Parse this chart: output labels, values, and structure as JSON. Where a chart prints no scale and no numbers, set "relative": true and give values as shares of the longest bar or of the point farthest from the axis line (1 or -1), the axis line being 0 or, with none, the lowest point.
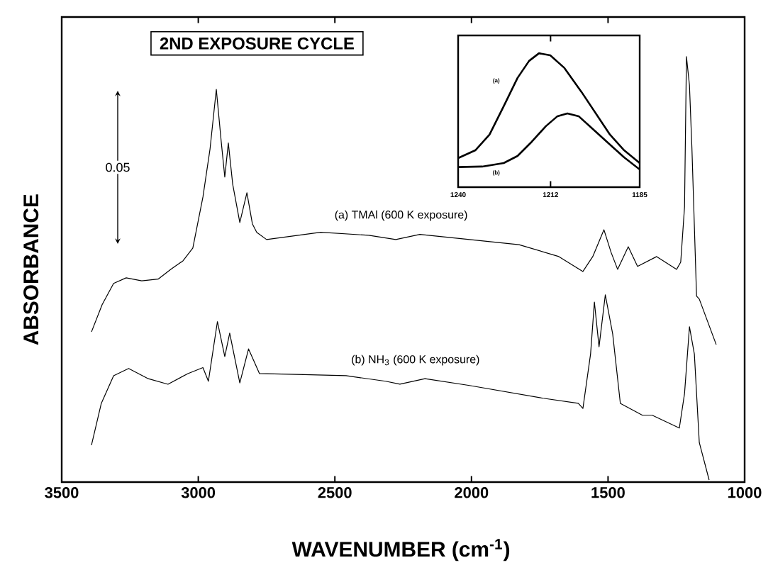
{
  "chart_data": [
    {
      "type": "line",
      "title": "2ND EXPOSURE CYCLE",
      "xlabel": "WAVENUMBER (cm$^{-1}$)",
      "ylabel": "ABSORBANCE",
      "relative": true,
      "xlim": [
        3500,
        1000
      ],
      "xticks": [
        3500,
        3000,
        2500,
        2000,
        1500,
        1000
      ],
      "annotations": [
        "0.05"
      ],
      "series": [
        {
          "name": "(a) TMAl (600 K exposure)",
          "color": "#000000",
          "x": [
            3391,
            3352,
            3310,
            3264,
            3207,
            3147,
            3101,
            3056,
            3020,
            2983,
            2957,
            2934,
            2916,
            2903,
            2890,
            2874,
            2848,
            2822,
            2802,
            2786,
            2750,
            2552,
            2376,
            2277,
            2189,
            2007,
            1826,
            1680,
            1592,
            1556,
            1515,
            1489,
            1465,
            1426,
            1392,
            1322,
            1249,
            1234,
            1220,
            1213,
            1202,
            1193,
            1176,
            1166,
            1104
          ],
          "values": [
            0.353,
            0.417,
            0.467,
            0.48,
            0.473,
            0.477,
            0.5,
            0.52,
            0.55,
            0.67,
            0.783,
            0.923,
            0.8,
            0.717,
            0.797,
            0.7,
            0.61,
            0.68,
            0.607,
            0.587,
            0.57,
            0.587,
            0.58,
            0.57,
            0.582,
            0.57,
            0.558,
            0.53,
            0.495,
            0.53,
            0.593,
            0.54,
            0.5,
            0.553,
            0.507,
            0.53,
            0.5,
            0.517,
            0.647,
            1,
            0.933,
            0.785,
            0.437,
            0.43,
            0.323
          ]
        },
        {
          "name": "(b) NH$_{3}$ (600 K exposure)",
          "color": "#000000",
          "x": [
            3391,
            3355,
            3310,
            3255,
            3183,
            3111,
            3038,
            2983,
            2963,
            2930,
            2903,
            2885,
            2848,
            2816,
            2776,
            2641,
            2459,
            2314,
            2262,
            2170,
            2007,
            1737,
            1609,
            1592,
            1564,
            1550,
            1533,
            1510,
            1483,
            1455,
            1374,
            1338,
            1239,
            1220,
            1202,
            1184,
            1166,
            1130
          ],
          "values": [
            0.087,
            0.185,
            0.25,
            0.267,
            0.243,
            0.23,
            0.255,
            0.269,
            0.237,
            0.377,
            0.295,
            0.35,
            0.233,
            0.313,
            0.255,
            0.253,
            0.25,
            0.237,
            0.23,
            0.243,
            0.227,
            0.197,
            0.185,
            0.173,
            0.301,
            0.423,
            0.318,
            0.44,
            0.348,
            0.185,
            0.157,
            0.157,
            0.127,
            0.208,
            0.365,
            0.301,
            0.093,
            0.005
          ]
        }
      ]
    },
    {
      "type": "line",
      "relative": true,
      "xlim": [
        1240,
        1185
      ],
      "xticks": [
        1240,
        1212,
        1185
      ],
      "series": [
        {
          "name": "(a)",
          "color": "#000000",
          "x": [
            1240,
            1234.8,
            1230.5,
            1226.2,
            1222.0,
            1218.5,
            1215.5,
            1212.1,
            1207.8,
            1202.6,
            1198.3,
            1194.0,
            1189.7,
            1185.0
          ],
          "values": [
            0.217,
            0.275,
            0.392,
            0.604,
            0.816,
            0.943,
            1,
            0.985,
            0.89,
            0.71,
            0.551,
            0.392,
            0.275,
            0.18
          ]
        },
        {
          "name": "(b)",
          "color": "#000000",
          "x": [
            1240,
            1232.7,
            1226.2,
            1222.0,
            1217.7,
            1213.4,
            1209.9,
            1206.9,
            1203.5,
            1199.2,
            1194.0,
            1189.7,
            1185.0
          ],
          "values": [
            0.15,
            0.154,
            0.18,
            0.233,
            0.339,
            0.456,
            0.53,
            0.551,
            0.53,
            0.434,
            0.318,
            0.222,
            0.132
          ]
        }
      ]
    }
  ]
}
